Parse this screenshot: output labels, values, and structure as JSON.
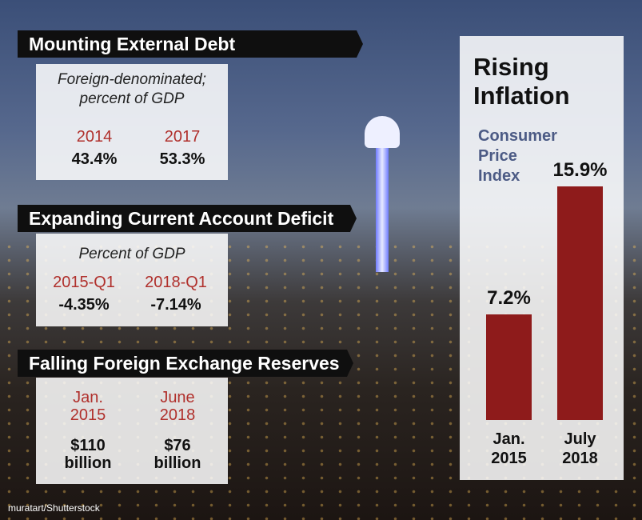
{
  "panels": [
    {
      "heading": "Mounting External Debt",
      "subtitle": "Foreign-denominated; percent of GDP",
      "items": [
        {
          "label": "2014",
          "value": "43.4%"
        },
        {
          "label": "2017",
          "value": "53.3%"
        }
      ]
    },
    {
      "heading": "Expanding Current Account Deficit",
      "subtitle": "Percent of GDP",
      "items": [
        {
          "label": "2015-Q1",
          "value": "-4.35%"
        },
        {
          "label": "2018-Q1",
          "value": "-7.14%"
        }
      ]
    },
    {
      "heading": "Falling Foreign Exchange Reserves",
      "items": [
        {
          "label": "Jan. 2015",
          "value": "$110 billion"
        },
        {
          "label": "June 2018",
          "value": "$76 billion"
        }
      ]
    }
  ],
  "chart_data": {
    "type": "bar",
    "title": "Rising Inflation",
    "subtitle": "Consumer Price Index",
    "categories": [
      "Jan. 2015",
      "July 2018"
    ],
    "values": [
      7.2,
      15.9
    ],
    "value_labels": [
      "7.2%",
      "15.9%"
    ],
    "color": "#8e1b1b"
  },
  "credit": "muratart/Shutterstock"
}
